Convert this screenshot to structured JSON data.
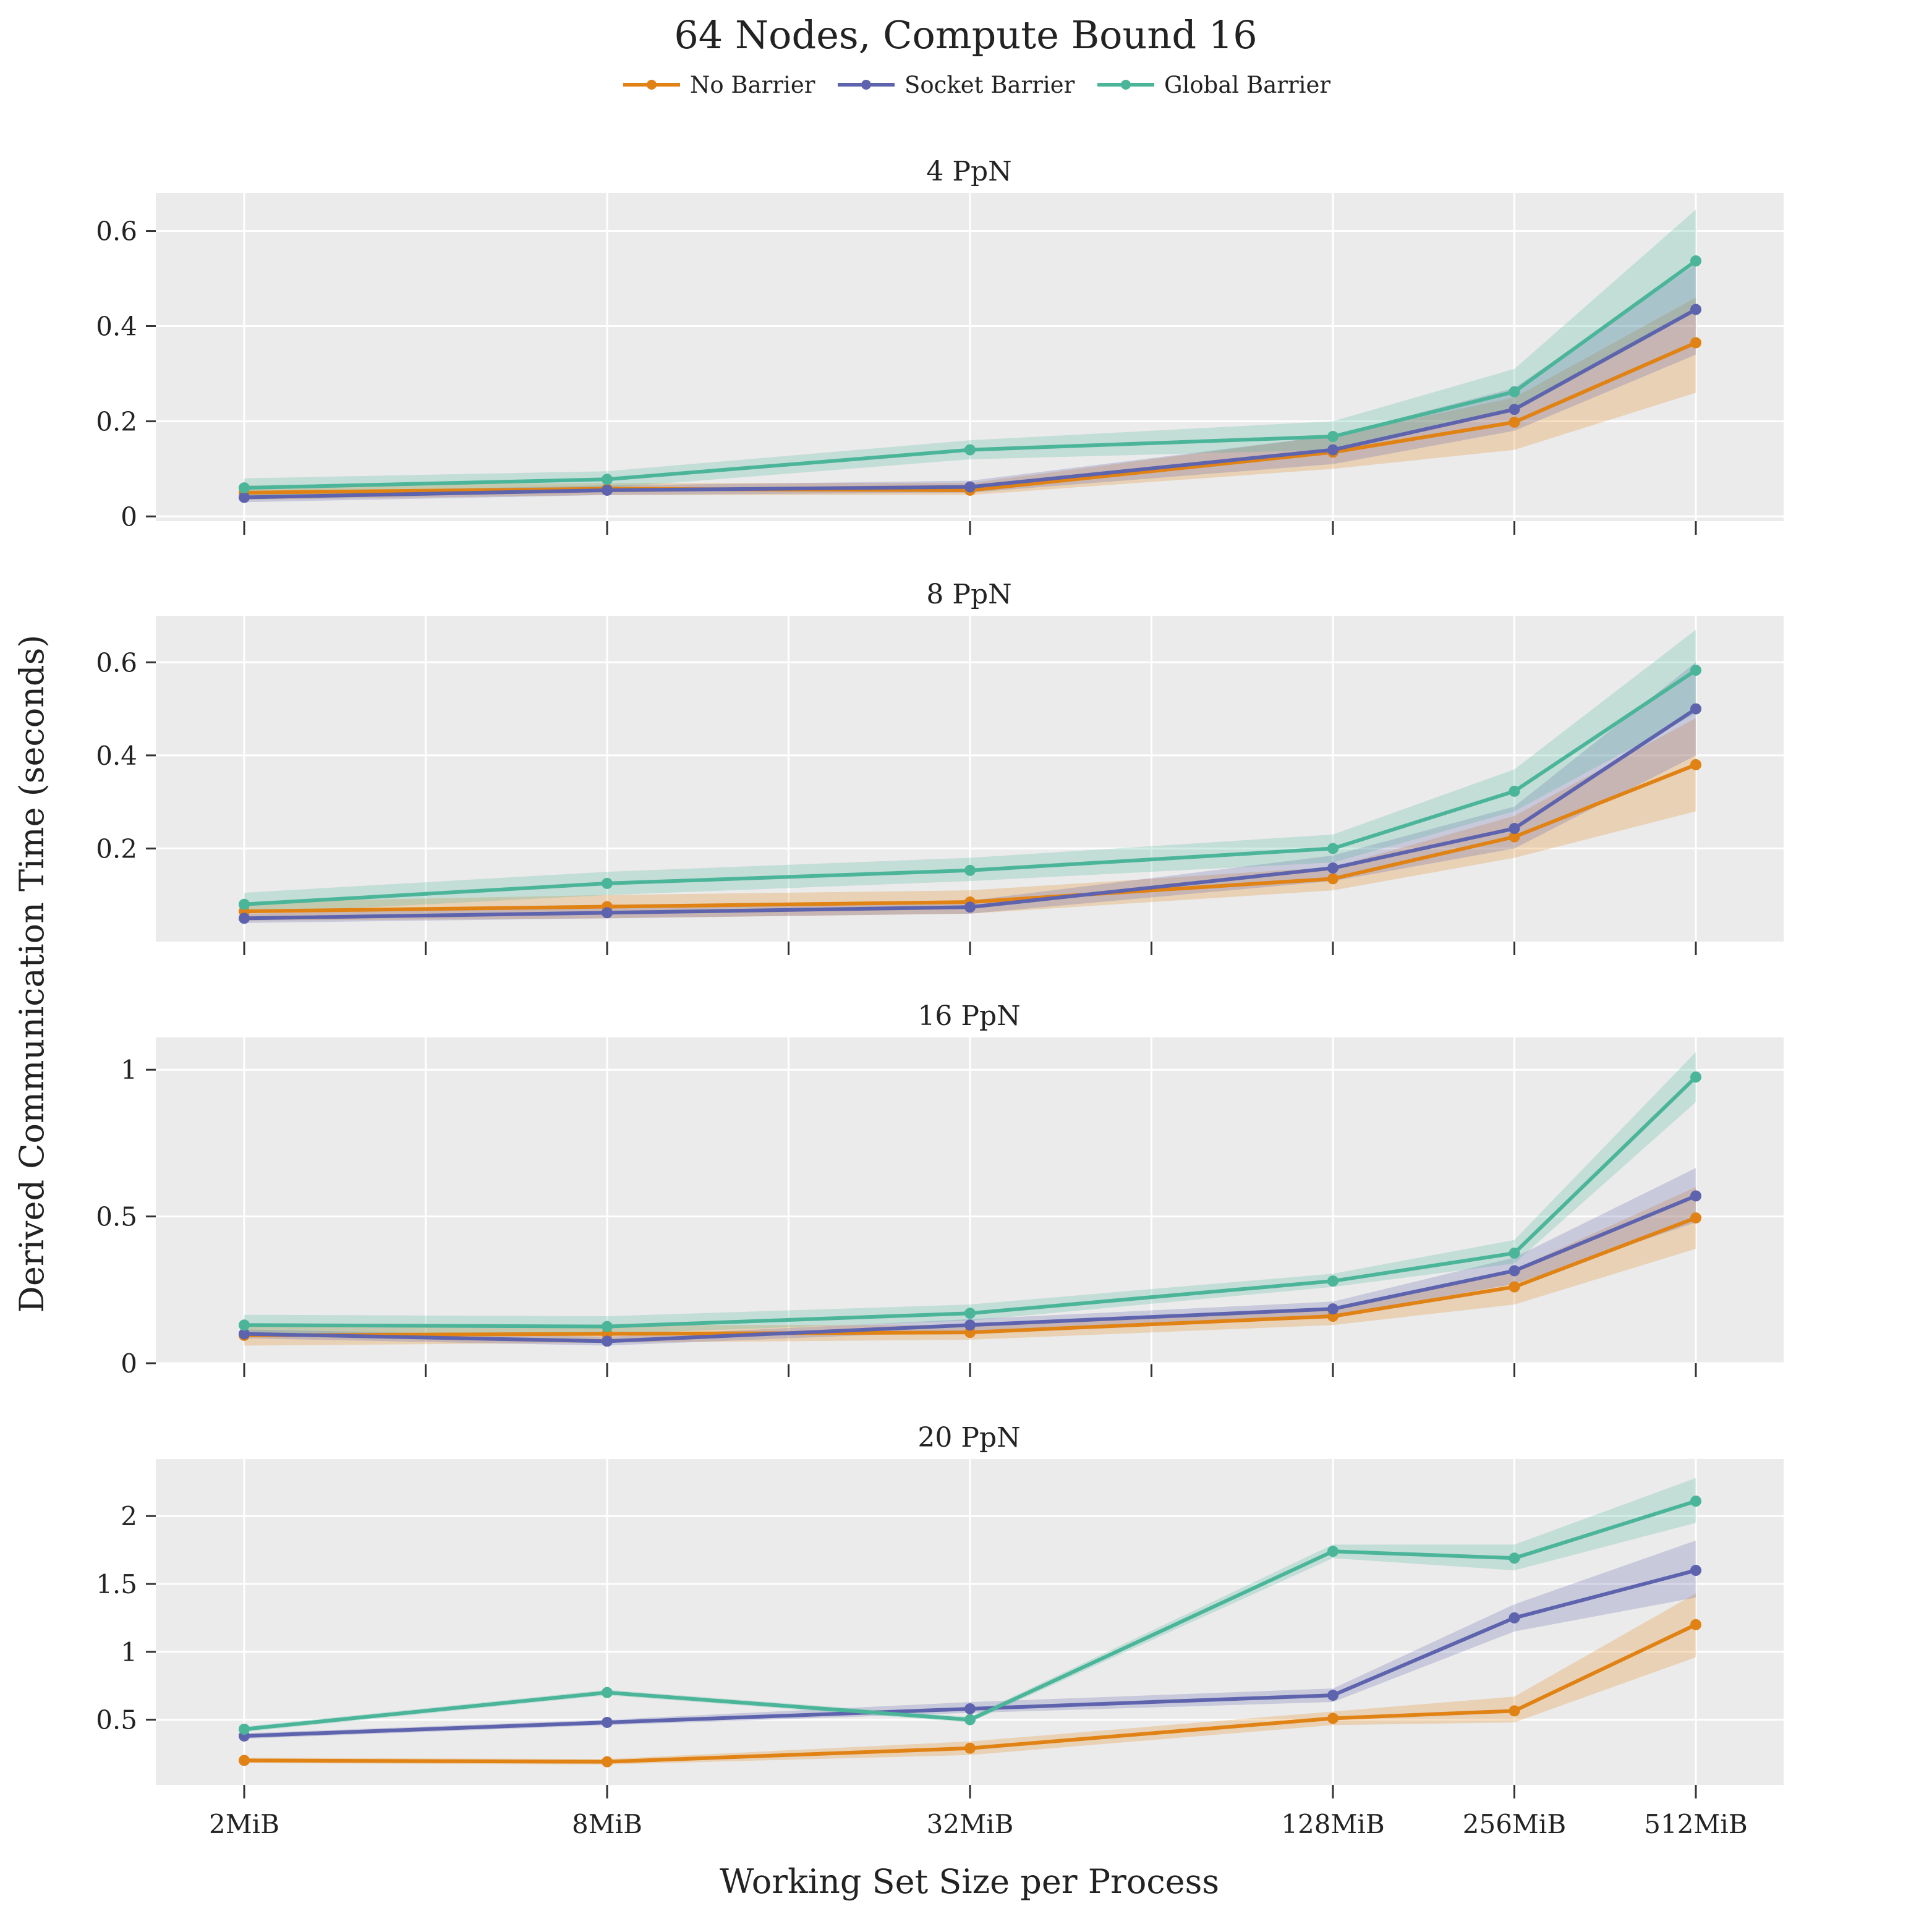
{
  "figure_title": "64 Nodes, Compute Bound 16",
  "x_axis_label": "Working Set Size per Process",
  "y_axis_label": "Derived Communication Time (seconds)",
  "legend": [
    {
      "label": "No Barrier",
      "color": "#e08214"
    },
    {
      "label": "Socket Barrier",
      "color": "#5e63ad"
    },
    {
      "label": "Global Barrier",
      "color": "#4bb59a"
    }
  ],
  "chart_data": [
    {
      "type": "line",
      "title": "4 PpN",
      "categories": [
        "2MiB",
        "8MiB",
        "32MiB",
        "128MiB",
        "256MiB",
        "512MiB"
      ],
      "x_mib": [
        2,
        8,
        32,
        128,
        256,
        512
      ],
      "ylim": [
        -0.01,
        0.68
      ],
      "yticks": [
        0,
        0.2,
        0.4,
        0.6
      ],
      "ytick_labels": [
        "0",
        "0.2",
        "0.4",
        "0.6"
      ],
      "grid": true,
      "series": [
        {
          "name": "No Barrier",
          "color": "#e08214",
          "values": [
            0.05,
            0.058,
            0.055,
            0.135,
            0.198,
            0.365
          ],
          "lower": [
            0.035,
            0.045,
            0.045,
            0.1,
            0.14,
            0.26
          ],
          "upper": [
            0.065,
            0.07,
            0.07,
            0.17,
            0.25,
            0.46
          ]
        },
        {
          "name": "Socket Barrier",
          "color": "#5e63ad",
          "values": [
            0.04,
            0.055,
            0.062,
            0.14,
            0.225,
            0.435
          ],
          "lower": [
            0.03,
            0.045,
            0.05,
            0.11,
            0.18,
            0.34
          ],
          "upper": [
            0.05,
            0.065,
            0.075,
            0.17,
            0.27,
            0.53
          ]
        },
        {
          "name": "Global Barrier",
          "color": "#4bb59a",
          "values": [
            0.06,
            0.078,
            0.14,
            0.168,
            0.262,
            0.537
          ],
          "lower": [
            0.04,
            0.06,
            0.12,
            0.14,
            0.22,
            0.43
          ],
          "upper": [
            0.08,
            0.095,
            0.16,
            0.2,
            0.31,
            0.645
          ]
        }
      ]
    },
    {
      "type": "line",
      "title": "8 PpN",
      "categories": [
        "2MiB",
        "8MiB",
        "32MiB",
        "128MiB",
        "256MiB",
        "512MiB"
      ],
      "x_mib": [
        2,
        8,
        32,
        128,
        256,
        512
      ],
      "ylim": [
        0,
        0.7
      ],
      "yticks": [
        0.2,
        0.4,
        0.6
      ],
      "ytick_labels": [
        "0.2",
        "0.4",
        "0.6"
      ],
      "grid": true,
      "series": [
        {
          "name": "No Barrier",
          "color": "#e08214",
          "values": [
            0.065,
            0.075,
            0.085,
            0.135,
            0.225,
            0.38
          ],
          "lower": [
            0.045,
            0.05,
            0.06,
            0.11,
            0.18,
            0.28
          ],
          "upper": [
            0.085,
            0.1,
            0.11,
            0.16,
            0.27,
            0.48
          ]
        },
        {
          "name": "Socket Barrier",
          "color": "#5e63ad",
          "values": [
            0.05,
            0.062,
            0.074,
            0.158,
            0.243,
            0.5
          ],
          "lower": [
            0.04,
            0.05,
            0.06,
            0.13,
            0.2,
            0.4
          ],
          "upper": [
            0.06,
            0.074,
            0.088,
            0.185,
            0.29,
            0.6
          ]
        },
        {
          "name": "Global Barrier",
          "color": "#4bb59a",
          "values": [
            0.08,
            0.125,
            0.153,
            0.2,
            0.323,
            0.583
          ],
          "lower": [
            0.06,
            0.1,
            0.13,
            0.17,
            0.28,
            0.49
          ],
          "upper": [
            0.105,
            0.15,
            0.18,
            0.23,
            0.37,
            0.67
          ]
        }
      ]
    },
    {
      "type": "line",
      "title": "16 PpN",
      "categories": [
        "2MiB",
        "8MiB",
        "32MiB",
        "128MiB",
        "256MiB",
        "512MiB"
      ],
      "x_mib": [
        2,
        8,
        32,
        128,
        256,
        512
      ],
      "ylim": [
        0,
        1.11
      ],
      "yticks": [
        0,
        0.5,
        1
      ],
      "ytick_labels": [
        "0",
        "0.5",
        "1"
      ],
      "grid": true,
      "series": [
        {
          "name": "No Barrier",
          "color": "#e08214",
          "values": [
            0.095,
            0.1,
            0.105,
            0.16,
            0.26,
            0.495
          ],
          "lower": [
            0.06,
            0.07,
            0.08,
            0.13,
            0.2,
            0.39
          ],
          "upper": [
            0.13,
            0.13,
            0.13,
            0.19,
            0.32,
            0.6
          ]
        },
        {
          "name": "Socket Barrier",
          "color": "#5e63ad",
          "values": [
            0.1,
            0.075,
            0.13,
            0.185,
            0.315,
            0.57
          ],
          "lower": [
            0.085,
            0.06,
            0.11,
            0.16,
            0.27,
            0.48
          ],
          "upper": [
            0.115,
            0.09,
            0.15,
            0.21,
            0.36,
            0.665
          ]
        },
        {
          "name": "Global Barrier",
          "color": "#4bb59a",
          "values": [
            0.13,
            0.125,
            0.17,
            0.28,
            0.375,
            0.975
          ],
          "lower": [
            0.1,
            0.1,
            0.145,
            0.26,
            0.34,
            0.89
          ],
          "upper": [
            0.165,
            0.16,
            0.2,
            0.305,
            0.42,
            1.06
          ]
        }
      ]
    },
    {
      "type": "line",
      "title": "20 PpN",
      "categories": [
        "2MiB",
        "8MiB",
        "32MiB",
        "128MiB",
        "256MiB",
        "512MiB"
      ],
      "x_mib": [
        2,
        8,
        32,
        128,
        256,
        512
      ],
      "ylim": [
        0.02,
        2.42
      ],
      "yticks": [
        0.5,
        1,
        1.5,
        2
      ],
      "ytick_labels": [
        "0.5",
        "1",
        "1.5",
        "2"
      ],
      "grid": true,
      "series": [
        {
          "name": "No Barrier",
          "color": "#e08214",
          "values": [
            0.2,
            0.19,
            0.29,
            0.51,
            0.565,
            1.2
          ],
          "lower": [
            0.18,
            0.17,
            0.24,
            0.46,
            0.48,
            0.96
          ],
          "upper": [
            0.22,
            0.21,
            0.34,
            0.56,
            0.67,
            1.43
          ]
        },
        {
          "name": "Socket Barrier",
          "color": "#5e63ad",
          "values": [
            0.38,
            0.48,
            0.58,
            0.68,
            1.25,
            1.6
          ],
          "lower": [
            0.36,
            0.46,
            0.55,
            0.63,
            1.15,
            1.4
          ],
          "upper": [
            0.4,
            0.5,
            0.63,
            0.73,
            1.35,
            1.82
          ]
        },
        {
          "name": "Global Barrier",
          "color": "#4bb59a",
          "values": [
            0.43,
            0.7,
            0.5,
            1.74,
            1.69,
            2.11
          ],
          "lower": [
            0.41,
            0.68,
            0.48,
            1.69,
            1.6,
            1.95
          ],
          "upper": [
            0.45,
            0.72,
            0.52,
            1.79,
            1.79,
            2.28
          ]
        }
      ]
    }
  ]
}
